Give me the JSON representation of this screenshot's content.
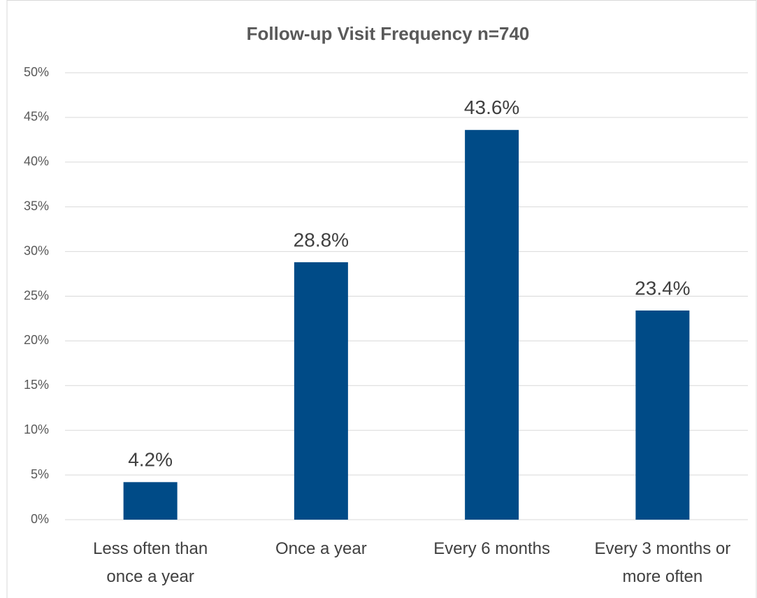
{
  "chart_data": {
    "type": "bar",
    "title": "Follow-up Visit Frequency n=740",
    "categories": [
      "Less often than once a year",
      "Once a year",
      "Every 6 months",
      "Every 3 months or more often"
    ],
    "values": [
      4.2,
      28.8,
      43.6,
      23.4
    ],
    "value_labels": [
      "4.2%",
      "28.8%",
      "43.6%",
      "23.4%"
    ],
    "color": "#004b87",
    "ylim": [
      0,
      50
    ],
    "yticks": [
      {
        "value": 0,
        "label": "0%"
      },
      {
        "value": 5,
        "label": "5%"
      },
      {
        "value": 10,
        "label": "10%"
      },
      {
        "value": 15,
        "label": "15%"
      },
      {
        "value": 20,
        "label": "20%"
      },
      {
        "value": 25,
        "label": "25%"
      },
      {
        "value": 30,
        "label": "30%"
      },
      {
        "value": 35,
        "label": "35%"
      },
      {
        "value": 40,
        "label": "40%"
      },
      {
        "value": 45,
        "label": "45%"
      },
      {
        "value": 50,
        "label": "50%"
      }
    ],
    "grid": true
  }
}
